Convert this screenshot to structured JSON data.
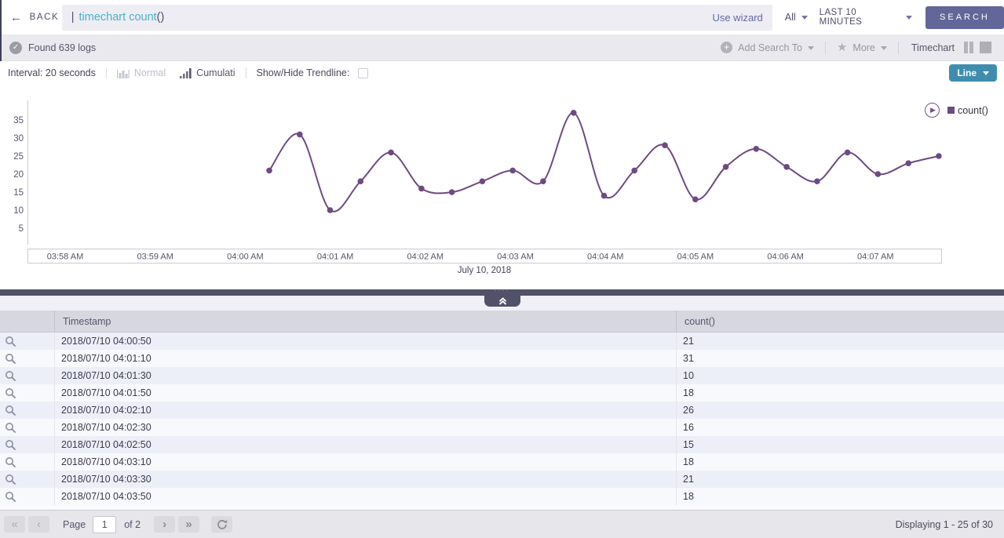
{
  "icons": {
    "back": "←",
    "check": "✓",
    "plus": "+",
    "star": "★",
    "play": "▶",
    "first_page": "«",
    "prev_page": "‹",
    "next_page": "›",
    "last_page": "»",
    "collapse_dots": "····"
  },
  "topbar": {
    "back": "BACK",
    "query": {
      "pipe": "|",
      "keywords": "timechart count",
      "parens": "()"
    },
    "use_wizard": "Use wizard",
    "scope": "All",
    "time_range": "LAST 10 MINUTES",
    "search": "SEARCH"
  },
  "toolbar": {
    "status": "Found 639 logs",
    "add_search_to": "Add Search To",
    "more": "More",
    "view_label": "Timechart"
  },
  "controls": {
    "interval": "Interval: 20 seconds",
    "normal": "Normal",
    "cumulative": "Cumulati",
    "trendline": "Show/Hide Trendline:",
    "chart_type": "Line"
  },
  "chart_data": {
    "type": "line",
    "title": "",
    "xlabel": "July 10, 2018",
    "ylabel": "",
    "ylim": [
      0,
      40
    ],
    "grid": false,
    "legend_position": "top-right",
    "x_ticks": [
      "03:58 AM",
      "03:59 AM",
      "04:00 AM",
      "04:01 AM",
      "04:02 AM",
      "04:03 AM",
      "04:04 AM",
      "04:05 AM",
      "04:06 AM",
      "04:07 AM"
    ],
    "y_ticks": [
      35,
      30,
      25,
      20,
      15,
      10,
      5
    ],
    "series": [
      {
        "name": "count()",
        "color": "#6d4b80",
        "times": [
          "04:00:50",
          "04:01:10",
          "04:01:30",
          "04:01:50",
          "04:02:10",
          "04:02:30",
          "04:02:50",
          "04:03:10",
          "04:03:30",
          "04:03:50",
          "04:04:10",
          "04:04:30",
          "04:04:50",
          "04:05:10",
          "04:05:30",
          "04:05:50",
          "04:06:10",
          "04:06:30",
          "04:06:50",
          "04:07:10",
          "04:07:30",
          "04:07:50",
          "04:08:10"
        ],
        "values": [
          21,
          31,
          10,
          18,
          26,
          16,
          15,
          18,
          21,
          18,
          37,
          14,
          21,
          28,
          13,
          22,
          27,
          22,
          18,
          26,
          20,
          23,
          25
        ]
      }
    ]
  },
  "table": {
    "columns": [
      "Timestamp",
      "count()"
    ],
    "rows": [
      {
        "timestamp": "2018/07/10 04:00:50",
        "count": "21"
      },
      {
        "timestamp": "2018/07/10 04:01:10",
        "count": "31"
      },
      {
        "timestamp": "2018/07/10 04:01:30",
        "count": "10"
      },
      {
        "timestamp": "2018/07/10 04:01:50",
        "count": "18"
      },
      {
        "timestamp": "2018/07/10 04:02:10",
        "count": "26"
      },
      {
        "timestamp": "2018/07/10 04:02:30",
        "count": "16"
      },
      {
        "timestamp": "2018/07/10 04:02:50",
        "count": "15"
      },
      {
        "timestamp": "2018/07/10 04:03:10",
        "count": "18"
      },
      {
        "timestamp": "2018/07/10 04:03:30",
        "count": "21"
      },
      {
        "timestamp": "2018/07/10 04:03:50",
        "count": "18"
      }
    ]
  },
  "pagination": {
    "page_label": "Page",
    "page": "1",
    "of": "of 2",
    "displaying": "Displaying 1 - 25 of 30"
  }
}
